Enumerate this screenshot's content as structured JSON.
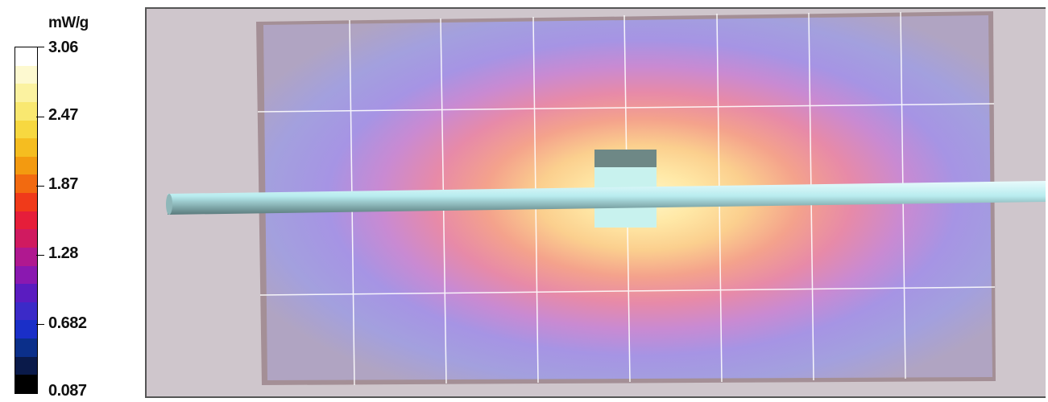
{
  "legend": {
    "unit": "mW/g",
    "ticks": [
      "3.06",
      "2.47",
      "1.87",
      "1.28",
      "0.682",
      "0.087"
    ],
    "colors": [
      "#000000",
      "#0a1a4a",
      "#0b2f8a",
      "#1a2fc8",
      "#3b2ac8",
      "#5a1cc0",
      "#8a18b0",
      "#b01890",
      "#d01a60",
      "#e61e3a",
      "#f03a1a",
      "#f26a10",
      "#f39a10",
      "#f5bd20",
      "#f7d840",
      "#f9e870",
      "#fbf2a0",
      "#fdf9d0",
      "#ffffff"
    ]
  },
  "view": {
    "background": "#cfc6cc",
    "description_colors": {
      "plate_edge": "#a48f96",
      "grid_line": "#ffffff",
      "dipole": "#b8ecef",
      "feed_block": "#c8f2ee"
    }
  }
}
